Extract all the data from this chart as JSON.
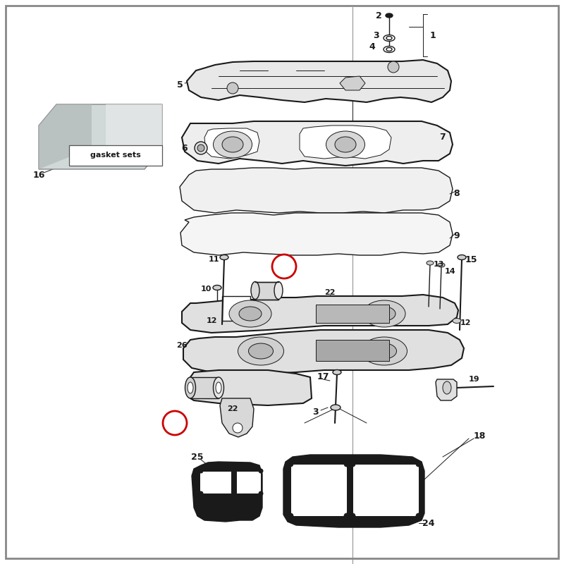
{
  "bg_color": "#ffffff",
  "lc": "#1a1a1a",
  "red": "#cc0000",
  "lw": 1.0,
  "lw2": 1.5,
  "lw3": 0.7,
  "fs": 9,
  "fs_sm": 8
}
